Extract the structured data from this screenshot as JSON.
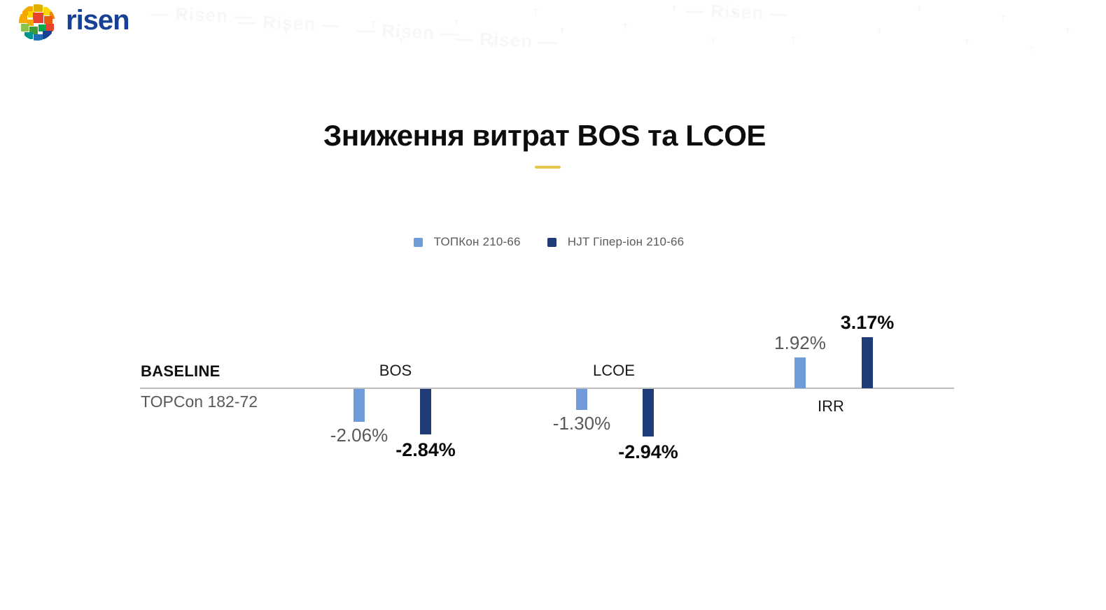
{
  "brand": {
    "logo_text": "risen",
    "logo_text_color": "#164194"
  },
  "background": {
    "watermark_text": "Risen"
  },
  "title": {
    "text": "Зниження витрат BOS та LCOE",
    "accent_color": "#E7C54F"
  },
  "legend": {
    "items": [
      {
        "label": "ТОПКон 210-66",
        "color": "#6F9BD9"
      },
      {
        "label": "HJT Гіпер-іон 210-66",
        "color": "#203C78"
      }
    ]
  },
  "chart": {
    "baseline_label": "BASELINE",
    "baseline_sublabel": "TOPCon 182-72"
  },
  "chart_data": {
    "type": "bar",
    "title": "Зниження витрат BOS та LCOE",
    "categories": [
      "BOS",
      "LCOE",
      "IRR"
    ],
    "series": [
      {
        "name": "ТОПКон 210-66",
        "color": "#6F9BD9",
        "values": [
          -2.06,
          -1.3,
          1.92
        ],
        "labels": [
          "-2.06%",
          "-1.30%",
          "1.92%"
        ]
      },
      {
        "name": "HJT Гіпер-іон 210-66",
        "color": "#203C78",
        "values": [
          -2.84,
          -2.94,
          3.17
        ],
        "labels": [
          "-2.84%",
          "-2.94%",
          "3.17%"
        ]
      }
    ],
    "baseline": {
      "label": "BASELINE",
      "sublabel": "TOPCon 182-72",
      "value": 0
    },
    "unit": "%",
    "grid": false,
    "legend_position": "top-center"
  }
}
